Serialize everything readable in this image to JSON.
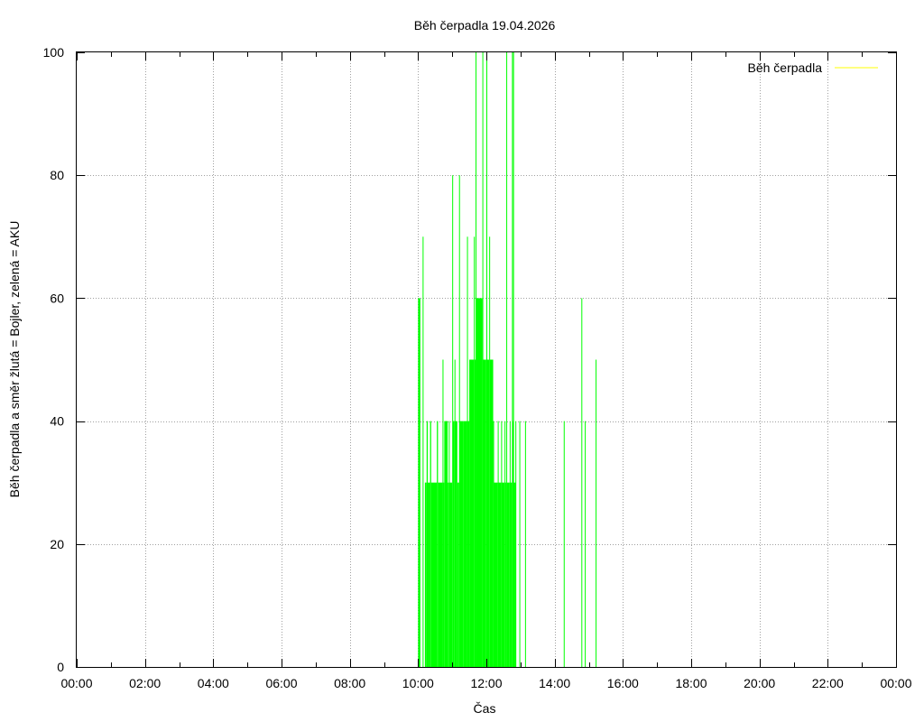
{
  "chart_data": {
    "type": "bar",
    "title": "Běh čerpadla 19.04.2026",
    "xlabel": "Čas",
    "ylabel": "Běh čerpadla a směr žlutá = Bojler, zelená = AKU",
    "xlim": [
      "00:00",
      "24:00"
    ],
    "ylim": [
      0,
      100
    ],
    "x_ticks": [
      "00:00",
      "02:00",
      "04:00",
      "06:00",
      "08:00",
      "10:00",
      "12:00",
      "14:00",
      "16:00",
      "18:00",
      "20:00",
      "22:00",
      "00:00"
    ],
    "y_ticks": [
      0,
      20,
      40,
      60,
      80,
      100
    ],
    "grid": true,
    "legend_position": "top-right",
    "legend": [
      {
        "name": "Běh čerpadla",
        "color": "#ffff00"
      }
    ],
    "colors": {
      "aku": "#00ff00",
      "bojler": "#ffff00"
    },
    "series": [
      {
        "name": "Běh čerpadla",
        "color": "#00ff00",
        "x_unit": "minutes after 00:00",
        "points": [
          [
            600,
            60
          ],
          [
            604,
            0
          ],
          [
            608,
            70
          ],
          [
            609,
            0
          ],
          [
            612,
            30
          ],
          [
            615,
            40
          ],
          [
            617,
            30
          ],
          [
            621,
            40
          ],
          [
            623,
            30
          ],
          [
            633,
            40
          ],
          [
            635,
            30
          ],
          [
            643,
            50
          ],
          [
            644,
            30
          ],
          [
            646,
            40
          ],
          [
            652,
            30
          ],
          [
            654,
            40
          ],
          [
            655,
            30
          ],
          [
            660,
            80
          ],
          [
            661,
            40
          ],
          [
            664,
            50
          ],
          [
            665,
            40
          ],
          [
            669,
            30
          ],
          [
            672,
            80
          ],
          [
            673,
            40
          ],
          [
            679,
            40
          ],
          [
            686,
            70
          ],
          [
            687,
            40
          ],
          [
            690,
            50
          ],
          [
            698,
            70
          ],
          [
            699,
            50
          ],
          [
            701,
            100
          ],
          [
            702,
            60
          ],
          [
            713,
            100
          ],
          [
            714,
            50
          ],
          [
            719,
            50
          ],
          [
            720,
            100
          ],
          [
            721,
            50
          ],
          [
            725,
            70
          ],
          [
            726,
            50
          ],
          [
            732,
            40
          ],
          [
            733,
            30
          ],
          [
            740,
            40
          ],
          [
            741,
            30
          ],
          [
            746,
            40
          ],
          [
            747,
            30
          ],
          [
            752,
            40
          ],
          [
            753,
            30
          ],
          [
            755,
            100
          ],
          [
            756,
            30
          ],
          [
            761,
            40
          ],
          [
            762,
            30
          ],
          [
            765,
            100
          ],
          [
            766,
            40
          ],
          [
            767,
            100
          ],
          [
            768,
            30
          ],
          [
            770,
            30
          ],
          [
            771,
            40
          ],
          [
            772,
            0
          ],
          [
            778,
            40
          ],
          [
            779,
            0
          ],
          [
            788,
            40
          ],
          [
            789,
            0
          ],
          [
            856,
            40
          ],
          [
            857,
            0
          ],
          [
            887,
            60
          ],
          [
            888,
            0
          ],
          [
            893,
            40
          ],
          [
            894,
            0
          ],
          [
            912,
            50
          ],
          [
            913,
            0
          ]
        ]
      }
    ]
  }
}
